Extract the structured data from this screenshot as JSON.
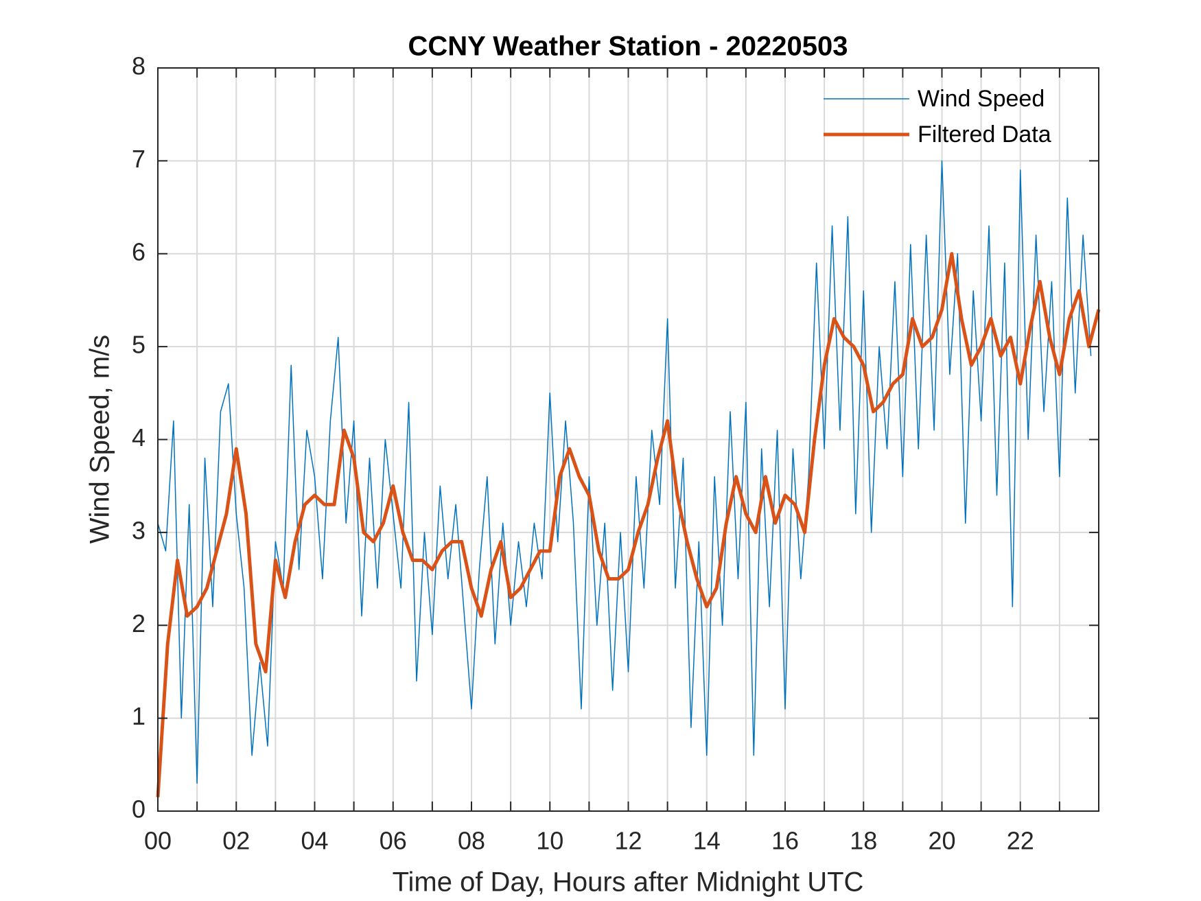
{
  "chart_data": {
    "type": "line",
    "title": "CCNY Weather Station - 20220503",
    "x_label": "Time of Day, Hours after Midnight UTC",
    "y_label": "Wind Speed, m/s",
    "xlim": [
      0,
      24
    ],
    "ylim": [
      0,
      8
    ],
    "xticks": [
      {
        "value": 0,
        "label": "00"
      },
      {
        "value": 2,
        "label": "02"
      },
      {
        "value": 4,
        "label": "04"
      },
      {
        "value": 6,
        "label": "06"
      },
      {
        "value": 8,
        "label": "08"
      },
      {
        "value": 10,
        "label": "10"
      },
      {
        "value": 12,
        "label": "12"
      },
      {
        "value": 14,
        "label": "14"
      },
      {
        "value": 16,
        "label": "16"
      },
      {
        "value": 18,
        "label": "18"
      },
      {
        "value": 20,
        "label": "20"
      },
      {
        "value": 22,
        "label": "22"
      }
    ],
    "xminor": [
      1,
      3,
      5,
      7,
      9,
      11,
      13,
      15,
      17,
      19,
      21,
      23
    ],
    "yticks": [
      0,
      1,
      2,
      3,
      4,
      5,
      6,
      7,
      8
    ],
    "grid": true,
    "legend": "upper-right",
    "series": [
      {
        "name": "Wind Speed",
        "color": "#0072bd",
        "width": 1.5,
        "x": [
          0.0,
          0.2,
          0.4,
          0.6,
          0.8,
          1.0,
          1.2,
          1.4,
          1.6,
          1.8,
          2.0,
          2.2,
          2.4,
          2.6,
          2.8,
          3.0,
          3.2,
          3.4,
          3.6,
          3.8,
          4.0,
          4.2,
          4.4,
          4.6,
          4.8,
          5.0,
          5.2,
          5.4,
          5.6,
          5.8,
          6.0,
          6.2,
          6.4,
          6.6,
          6.8,
          7.0,
          7.2,
          7.4,
          7.6,
          7.8,
          8.0,
          8.2,
          8.4,
          8.6,
          8.8,
          9.0,
          9.2,
          9.4,
          9.6,
          9.8,
          10.0,
          10.2,
          10.4,
          10.6,
          10.8,
          11.0,
          11.2,
          11.4,
          11.6,
          11.8,
          12.0,
          12.2,
          12.4,
          12.6,
          12.8,
          13.0,
          13.2,
          13.4,
          13.6,
          13.8,
          14.0,
          14.2,
          14.4,
          14.6,
          14.8,
          15.0,
          15.2,
          15.4,
          15.6,
          15.8,
          16.0,
          16.2,
          16.4,
          16.6,
          16.8,
          17.0,
          17.2,
          17.4,
          17.6,
          17.8,
          18.0,
          18.2,
          18.4,
          18.6,
          18.8,
          19.0,
          19.2,
          19.4,
          19.6,
          19.8,
          20.0,
          20.2,
          20.4,
          20.6,
          20.8,
          21.0,
          21.2,
          21.4,
          21.6,
          21.8,
          22.0,
          22.2,
          22.4,
          22.6,
          22.8,
          23.0,
          23.2,
          23.4,
          23.6,
          23.8
        ],
        "values": [
          3.1,
          2.8,
          4.2,
          1.0,
          3.3,
          0.3,
          3.8,
          2.2,
          4.3,
          4.6,
          3.2,
          2.4,
          0.6,
          1.6,
          0.7,
          2.9,
          2.4,
          4.8,
          2.6,
          4.1,
          3.6,
          2.5,
          4.2,
          5.1,
          3.1,
          4.2,
          2.1,
          3.8,
          2.4,
          4.0,
          3.2,
          2.4,
          4.4,
          1.4,
          3.0,
          1.9,
          3.5,
          2.5,
          3.3,
          2.2,
          1.1,
          2.6,
          3.6,
          1.8,
          3.1,
          2.0,
          2.9,
          2.2,
          3.1,
          2.5,
          4.5,
          2.9,
          4.2,
          3.1,
          1.1,
          3.6,
          2.0,
          3.1,
          1.3,
          3.0,
          1.5,
          3.6,
          2.4,
          4.1,
          3.3,
          5.3,
          2.4,
          3.8,
          0.9,
          2.9,
          0.6,
          3.6,
          2.0,
          4.3,
          2.5,
          4.4,
          0.6,
          3.9,
          2.2,
          4.1,
          1.1,
          3.9,
          2.5,
          3.6,
          5.9,
          3.9,
          6.3,
          4.1,
          6.4,
          3.2,
          5.6,
          3.0,
          5.0,
          3.9,
          5.7,
          3.6,
          6.1,
          3.9,
          6.2,
          4.1,
          7.0,
          4.7,
          6.0,
          3.1,
          5.6,
          4.2,
          6.3,
          3.4,
          5.9,
          2.2,
          6.9,
          4.0,
          6.2,
          4.3,
          5.7,
          3.6,
          6.6,
          4.5,
          6.2,
          4.9
        ]
      },
      {
        "name": "Filtered Data",
        "color": "#d95319",
        "width": 5,
        "x": [
          0,
          0.25,
          0.5,
          0.75,
          1,
          1.25,
          1.5,
          1.75,
          2,
          2.25,
          2.5,
          2.75,
          3,
          3.25,
          3.5,
          3.75,
          4,
          4.25,
          4.5,
          4.75,
          5,
          5.25,
          5.5,
          5.75,
          6,
          6.25,
          6.5,
          6.75,
          7,
          7.25,
          7.5,
          7.75,
          8,
          8.25,
          8.5,
          8.75,
          9,
          9.25,
          9.5,
          9.75,
          10,
          10.25,
          10.5,
          10.75,
          11,
          11.25,
          11.5,
          11.75,
          12,
          12.25,
          12.5,
          12.75,
          13,
          13.25,
          13.5,
          13.75,
          14,
          14.25,
          14.5,
          14.75,
          15,
          15.25,
          15.5,
          15.75,
          16,
          16.25,
          16.5,
          16.75,
          17,
          17.25,
          17.5,
          17.75,
          18,
          18.25,
          18.5,
          18.75,
          19,
          19.25,
          19.5,
          19.75,
          20,
          20.25,
          20.5,
          20.75,
          21,
          21.25,
          21.5,
          21.75,
          22,
          22.25,
          22.5,
          22.75,
          23,
          23.25,
          23.5,
          23.75,
          24
        ],
        "values": [
          0.15,
          1.8,
          2.7,
          2.1,
          2.2,
          2.4,
          2.8,
          3.2,
          3.9,
          3.2,
          1.8,
          1.5,
          2.7,
          2.3,
          2.9,
          3.3,
          3.4,
          3.3,
          3.3,
          4.1,
          3.8,
          3.0,
          2.9,
          3.1,
          3.5,
          3.0,
          2.7,
          2.7,
          2.6,
          2.8,
          2.9,
          2.9,
          2.4,
          2.1,
          2.6,
          2.9,
          2.3,
          2.4,
          2.6,
          2.8,
          2.8,
          3.6,
          3.9,
          3.6,
          3.4,
          2.8,
          2.5,
          2.5,
          2.6,
          3.0,
          3.3,
          3.8,
          4.2,
          3.4,
          2.9,
          2.5,
          2.2,
          2.4,
          3.1,
          3.6,
          3.2,
          3.0,
          3.6,
          3.1,
          3.4,
          3.3,
          3.0,
          4.0,
          4.8,
          5.3,
          5.1,
          5.0,
          4.8,
          4.3,
          4.4,
          4.6,
          4.7,
          5.3,
          5.0,
          5.1,
          5.4,
          6.0,
          5.3,
          4.8,
          5.0,
          5.3,
          4.9,
          5.1,
          4.6,
          5.2,
          5.7,
          5.1,
          4.7,
          5.3,
          5.6,
          5.0,
          5.4
        ]
      }
    ]
  }
}
